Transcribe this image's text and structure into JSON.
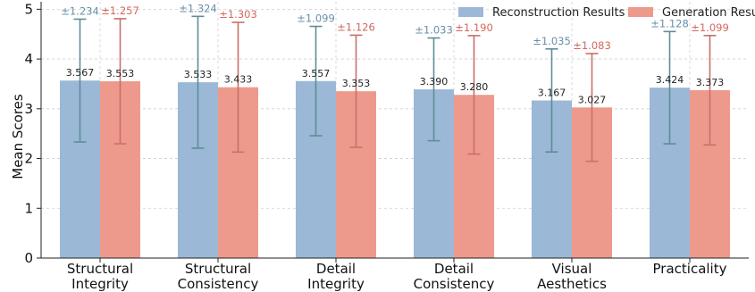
{
  "chart_data": {
    "type": "bar",
    "title": "",
    "xlabel": "",
    "ylabel": "Mean Scores",
    "ylim": [
      0,
      5.15
    ],
    "yticks": [
      0,
      1,
      2,
      3,
      4,
      5
    ],
    "grid": true,
    "legend_position": "top-right",
    "categories": [
      [
        "Structural",
        "Integrity"
      ],
      [
        "Structural",
        "Consistency"
      ],
      [
        "Detail",
        "Integrity"
      ],
      [
        "Detail",
        "Consistency"
      ],
      [
        "Visual",
        "Aesthetics"
      ],
      [
        "Practicality"
      ]
    ],
    "series": [
      {
        "name": "Reconstruction Results",
        "color": "#9bb8d6",
        "error_color": "#5f8e96",
        "label_color": "#6a8fa8",
        "values": [
          3.567,
          3.533,
          3.557,
          3.39,
          3.167,
          3.424
        ],
        "value_labels": [
          "3.567",
          "3.533",
          "3.557",
          "3.390",
          "3.167",
          "3.424"
        ],
        "errors": [
          1.234,
          1.324,
          1.099,
          1.033,
          1.035,
          1.128
        ],
        "error_labels": [
          "±1.234",
          "±1.324",
          "±1.099",
          "±1.033",
          "±1.035",
          "±1.128"
        ]
      },
      {
        "name": "Generation Results",
        "color": "#ed9a8c",
        "error_color": "#c96f68",
        "label_color": "#d2685e",
        "values": [
          3.553,
          3.433,
          3.353,
          3.28,
          3.027,
          3.373
        ],
        "value_labels": [
          "3.553",
          "3.433",
          "3.353",
          "3.280",
          "3.027",
          "3.373"
        ],
        "errors": [
          1.257,
          1.303,
          1.126,
          1.19,
          1.083,
          1.099
        ],
        "error_labels": [
          "±1.257",
          "±1.303",
          "±1.126",
          "±1.190",
          "±1.083",
          "±1.099"
        ]
      }
    ]
  }
}
